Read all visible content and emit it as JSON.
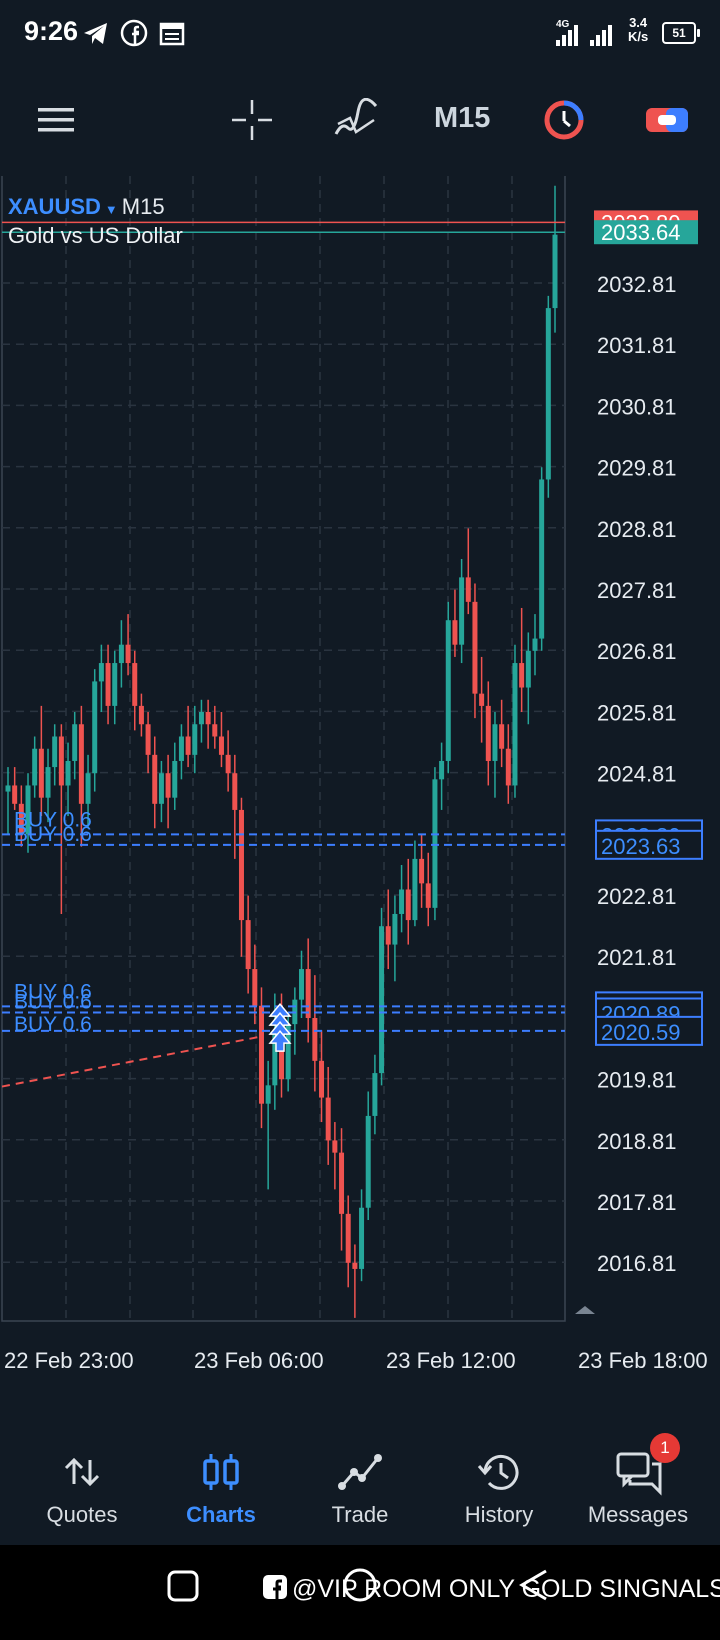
{
  "status_bar": {
    "time": "9:26",
    "network_speed": "3.4",
    "network_unit": "K/s",
    "network_type": "4G",
    "battery": "51",
    "icons": [
      "telegram-icon",
      "facebook-icon",
      "calendar-icon",
      "signal-icon",
      "battery-icon"
    ]
  },
  "toolbar": {
    "timeframe": "M15",
    "icons": [
      "menu-icon",
      "crosshair-icon",
      "indicators-icon",
      "clock-icon",
      "trade-toggle-icon"
    ]
  },
  "chart": {
    "symbol": "XAUUSD",
    "timeframe": "M15",
    "description": "Gold vs US Dollar",
    "ask_price": "2033.80",
    "bid_price": "2033.64",
    "price_ticks": [
      "2032.81",
      "2031.81",
      "2030.81",
      "2029.81",
      "2028.81",
      "2027.81",
      "2026.81",
      "2025.81",
      "2024.81",
      "2022.81",
      "2021.81",
      "2019.81",
      "2018.81",
      "2017.81",
      "2016.81"
    ],
    "order_lines": [
      {
        "label": "BUY 0.6",
        "price": "2023.80"
      },
      {
        "label": "BUY 0.6",
        "price": "2023.63"
      },
      {
        "label": "BUY 0.6",
        "price": "2020.99"
      },
      {
        "label": "BUY 0.6",
        "price": "2020.89"
      },
      {
        "label": "BUY 0.6",
        "price": "2020.59"
      }
    ],
    "time_labels": [
      "22 Feb 23:00",
      "23 Feb 06:00",
      "23 Feb 12:00",
      "23 Feb 18:00"
    ],
    "colors": {
      "bull": "#26a69a",
      "bear": "#ef5350",
      "order": "#3d7eff",
      "grid": "#2a3440",
      "background": "#111a24"
    }
  },
  "chart_data": {
    "type": "candlestick",
    "title": "",
    "x": [
      "22 Feb 23:00",
      "23 Feb 06:00",
      "23 Feb 12:00",
      "23 Feb 18:00"
    ],
    "ylim": [
      2015.9,
      2034.6
    ],
    "candles": [
      {
        "o": 2024.5,
        "h": 2024.9,
        "l": 2023.8,
        "c": 2024.6
      },
      {
        "o": 2024.6,
        "h": 2024.9,
        "l": 2024.2,
        "c": 2024.3
      },
      {
        "o": 2024.3,
        "h": 2024.6,
        "l": 2023.6,
        "c": 2023.8
      },
      {
        "o": 2023.8,
        "h": 2024.8,
        "l": 2023.5,
        "c": 2024.6
      },
      {
        "o": 2024.6,
        "h": 2025.4,
        "l": 2024.4,
        "c": 2025.2
      },
      {
        "o": 2025.2,
        "h": 2025.9,
        "l": 2024.1,
        "c": 2024.4
      },
      {
        "o": 2024.4,
        "h": 2025.2,
        "l": 2024.0,
        "c": 2024.9
      },
      {
        "o": 2024.9,
        "h": 2025.6,
        "l": 2024.6,
        "c": 2025.4
      },
      {
        "o": 2025.4,
        "h": 2025.6,
        "l": 2022.5,
        "c": 2024.6
      },
      {
        "o": 2024.6,
        "h": 2025.3,
        "l": 2024.1,
        "c": 2025.0
      },
      {
        "o": 2025.0,
        "h": 2025.8,
        "l": 2024.7,
        "c": 2025.6
      },
      {
        "o": 2025.6,
        "h": 2025.9,
        "l": 2023.6,
        "c": 2024.3
      },
      {
        "o": 2024.3,
        "h": 2025.1,
        "l": 2023.9,
        "c": 2024.8
      },
      {
        "o": 2024.8,
        "h": 2026.5,
        "l": 2024.5,
        "c": 2026.3
      },
      {
        "o": 2026.3,
        "h": 2026.9,
        "l": 2025.8,
        "c": 2026.6
      },
      {
        "o": 2026.6,
        "h": 2026.9,
        "l": 2025.6,
        "c": 2025.9
      },
      {
        "o": 2025.9,
        "h": 2026.8,
        "l": 2025.6,
        "c": 2026.6
      },
      {
        "o": 2026.6,
        "h": 2027.3,
        "l": 2026.2,
        "c": 2026.9
      },
      {
        "o": 2026.9,
        "h": 2027.4,
        "l": 2026.4,
        "c": 2026.6
      },
      {
        "o": 2026.6,
        "h": 2026.8,
        "l": 2025.5,
        "c": 2025.9
      },
      {
        "o": 2025.9,
        "h": 2026.1,
        "l": 2025.4,
        "c": 2025.6
      },
      {
        "o": 2025.6,
        "h": 2025.8,
        "l": 2024.8,
        "c": 2025.1
      },
      {
        "o": 2025.1,
        "h": 2025.4,
        "l": 2023.9,
        "c": 2024.3
      },
      {
        "o": 2024.3,
        "h": 2025.0,
        "l": 2024.0,
        "c": 2024.8
      },
      {
        "o": 2024.8,
        "h": 2025.1,
        "l": 2023.9,
        "c": 2024.4
      },
      {
        "o": 2024.4,
        "h": 2025.3,
        "l": 2024.2,
        "c": 2025.0
      },
      {
        "o": 2025.0,
        "h": 2025.6,
        "l": 2024.7,
        "c": 2025.4
      },
      {
        "o": 2025.4,
        "h": 2025.9,
        "l": 2024.9,
        "c": 2025.1
      },
      {
        "o": 2025.1,
        "h": 2025.9,
        "l": 2024.8,
        "c": 2025.6
      },
      {
        "o": 2025.6,
        "h": 2026.0,
        "l": 2025.3,
        "c": 2025.8
      },
      {
        "o": 2025.8,
        "h": 2026.0,
        "l": 2025.2,
        "c": 2025.6
      },
      {
        "o": 2025.6,
        "h": 2025.9,
        "l": 2025.2,
        "c": 2025.4
      },
      {
        "o": 2025.4,
        "h": 2025.8,
        "l": 2024.9,
        "c": 2025.1
      },
      {
        "o": 2025.1,
        "h": 2025.5,
        "l": 2024.5,
        "c": 2024.8
      },
      {
        "o": 2024.8,
        "h": 2025.1,
        "l": 2023.4,
        "c": 2024.2
      },
      {
        "o": 2024.2,
        "h": 2024.4,
        "l": 2021.8,
        "c": 2022.4
      },
      {
        "o": 2022.4,
        "h": 2022.8,
        "l": 2021.2,
        "c": 2021.6
      },
      {
        "o": 2021.6,
        "h": 2022.0,
        "l": 2020.7,
        "c": 2021.0
      },
      {
        "o": 2021.0,
        "h": 2021.3,
        "l": 2019.0,
        "c": 2019.4
      },
      {
        "o": 2019.4,
        "h": 2020.1,
        "l": 2018.0,
        "c": 2019.7
      },
      {
        "o": 2019.7,
        "h": 2021.2,
        "l": 2019.3,
        "c": 2020.6
      },
      {
        "o": 2020.6,
        "h": 2021.2,
        "l": 2019.5,
        "c": 2019.8
      },
      {
        "o": 2019.8,
        "h": 2020.9,
        "l": 2019.6,
        "c": 2020.7
      },
      {
        "o": 2020.7,
        "h": 2021.3,
        "l": 2020.2,
        "c": 2021.1
      },
      {
        "o": 2021.1,
        "h": 2021.9,
        "l": 2020.8,
        "c": 2021.6
      },
      {
        "o": 2021.6,
        "h": 2022.1,
        "l": 2020.4,
        "c": 2020.8
      },
      {
        "o": 2020.8,
        "h": 2021.5,
        "l": 2019.6,
        "c": 2020.1
      },
      {
        "o": 2020.1,
        "h": 2020.6,
        "l": 2019.1,
        "c": 2019.5
      },
      {
        "o": 2019.5,
        "h": 2020.0,
        "l": 2018.4,
        "c": 2018.8
      },
      {
        "o": 2018.8,
        "h": 2019.1,
        "l": 2018.0,
        "c": 2018.6
      },
      {
        "o": 2018.6,
        "h": 2019.0,
        "l": 2017.0,
        "c": 2017.6
      },
      {
        "o": 2017.6,
        "h": 2017.9,
        "l": 2016.4,
        "c": 2016.8
      },
      {
        "o": 2016.8,
        "h": 2017.1,
        "l": 2015.9,
        "c": 2016.7
      },
      {
        "o": 2016.7,
        "h": 2018.0,
        "l": 2016.5,
        "c": 2017.7
      },
      {
        "o": 2017.7,
        "h": 2019.6,
        "l": 2017.5,
        "c": 2019.2
      },
      {
        "o": 2019.2,
        "h": 2020.2,
        "l": 2018.9,
        "c": 2019.9
      },
      {
        "o": 2019.9,
        "h": 2022.6,
        "l": 2019.7,
        "c": 2022.3
      },
      {
        "o": 2022.3,
        "h": 2022.9,
        "l": 2021.6,
        "c": 2022.0
      },
      {
        "o": 2022.0,
        "h": 2022.8,
        "l": 2021.4,
        "c": 2022.5
      },
      {
        "o": 2022.5,
        "h": 2023.3,
        "l": 2022.2,
        "c": 2022.9
      },
      {
        "o": 2022.9,
        "h": 2023.4,
        "l": 2022.0,
        "c": 2022.4
      },
      {
        "o": 2022.4,
        "h": 2023.7,
        "l": 2022.3,
        "c": 2023.4
      },
      {
        "o": 2023.4,
        "h": 2023.8,
        "l": 2022.6,
        "c": 2023.0
      },
      {
        "o": 2023.0,
        "h": 2023.5,
        "l": 2022.3,
        "c": 2022.6
      },
      {
        "o": 2022.6,
        "h": 2024.9,
        "l": 2022.4,
        "c": 2024.7
      },
      {
        "o": 2024.7,
        "h": 2025.3,
        "l": 2024.2,
        "c": 2025.0
      },
      {
        "o": 2025.0,
        "h": 2027.6,
        "l": 2024.8,
        "c": 2027.3
      },
      {
        "o": 2027.3,
        "h": 2027.8,
        "l": 2026.7,
        "c": 2026.9
      },
      {
        "o": 2026.9,
        "h": 2028.3,
        "l": 2026.6,
        "c": 2028.0
      },
      {
        "o": 2028.0,
        "h": 2028.8,
        "l": 2027.4,
        "c": 2027.6
      },
      {
        "o": 2027.6,
        "h": 2027.9,
        "l": 2025.7,
        "c": 2026.1
      },
      {
        "o": 2026.1,
        "h": 2026.7,
        "l": 2025.3,
        "c": 2025.9
      },
      {
        "o": 2025.9,
        "h": 2026.3,
        "l": 2024.6,
        "c": 2025.0
      },
      {
        "o": 2025.0,
        "h": 2025.8,
        "l": 2024.4,
        "c": 2025.6
      },
      {
        "o": 2025.6,
        "h": 2026.0,
        "l": 2024.9,
        "c": 2025.2
      },
      {
        "o": 2025.2,
        "h": 2025.6,
        "l": 2024.3,
        "c": 2024.6
      },
      {
        "o": 2024.6,
        "h": 2026.9,
        "l": 2024.4,
        "c": 2026.6
      },
      {
        "o": 2026.6,
        "h": 2027.5,
        "l": 2025.8,
        "c": 2026.2
      },
      {
        "o": 2026.2,
        "h": 2027.1,
        "l": 2025.6,
        "c": 2026.8
      },
      {
        "o": 2026.8,
        "h": 2027.4,
        "l": 2026.4,
        "c": 2027.0
      },
      {
        "o": 2027.0,
        "h": 2029.8,
        "l": 2026.8,
        "c": 2029.6
      },
      {
        "o": 2029.6,
        "h": 2032.6,
        "l": 2029.3,
        "c": 2032.4
      },
      {
        "o": 2032.4,
        "h": 2034.4,
        "l": 2032.0,
        "c": 2033.6
      }
    ]
  },
  "bottom_nav": {
    "items": [
      {
        "label": "Quotes",
        "icon": "quotes-icon"
      },
      {
        "label": "Charts",
        "icon": "charts-icon"
      },
      {
        "label": "Trade",
        "icon": "trade-icon"
      },
      {
        "label": "History",
        "icon": "history-icon"
      },
      {
        "label": "Messages",
        "icon": "messages-icon"
      }
    ],
    "messages_badge": "1"
  },
  "system_bar": {
    "watermark": "@VIP ROOM ONLY GOLD SINGNALS"
  }
}
